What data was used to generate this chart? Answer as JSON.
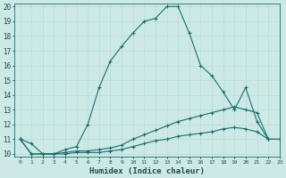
{
  "xlabel": "Humidex (Indice chaleur)",
  "xlim": [
    -0.5,
    23
  ],
  "ylim": [
    9.8,
    20.2
  ],
  "yticks": [
    10,
    11,
    12,
    13,
    14,
    15,
    16,
    17,
    18,
    19,
    20
  ],
  "xticks": [
    0,
    1,
    2,
    3,
    4,
    5,
    6,
    7,
    8,
    9,
    10,
    11,
    12,
    13,
    14,
    15,
    16,
    17,
    18,
    19,
    20,
    21,
    22,
    23
  ],
  "bg_color": "#cce9e6",
  "line_color": "#1a6e6a",
  "grid_color": "#b8dbd8",
  "series": [
    {
      "x": [
        0,
        1,
        2,
        3,
        4,
        5,
        6,
        7,
        8,
        9,
        10,
        11,
        12,
        13,
        14,
        15,
        16,
        17,
        18,
        19,
        20,
        21,
        22
      ],
      "y": [
        11.0,
        10.7,
        10.0,
        10.0,
        10.3,
        10.5,
        12.0,
        14.5,
        16.3,
        17.3,
        18.2,
        19.0,
        19.2,
        20.0,
        20.0,
        18.2,
        16.0,
        15.3,
        14.2,
        13.0,
        14.5,
        12.2,
        11.0
      ]
    },
    {
      "x": [
        0,
        1,
        2,
        3,
        4,
        5,
        6,
        7,
        8,
        9,
        10,
        11,
        12,
        13,
        14,
        15,
        16,
        17,
        18,
        19,
        20,
        21,
        22,
        23
      ],
      "y": [
        11.0,
        10.0,
        10.0,
        10.0,
        10.1,
        10.2,
        10.2,
        10.3,
        10.4,
        10.6,
        11.0,
        11.3,
        11.6,
        11.9,
        12.2,
        12.4,
        12.6,
        12.8,
        13.0,
        13.2,
        13.0,
        12.8,
        11.0,
        11.0
      ]
    },
    {
      "x": [
        0,
        1,
        2,
        3,
        4,
        5,
        6,
        7,
        8,
        9,
        10,
        11,
        12,
        13,
        14,
        15,
        16,
        17,
        18,
        19,
        20,
        21,
        22,
        23
      ],
      "y": [
        11.0,
        10.0,
        10.0,
        10.0,
        10.0,
        10.1,
        10.1,
        10.1,
        10.2,
        10.3,
        10.5,
        10.7,
        10.9,
        11.0,
        11.2,
        11.3,
        11.4,
        11.5,
        11.7,
        11.8,
        11.7,
        11.5,
        11.0,
        11.0
      ]
    }
  ]
}
